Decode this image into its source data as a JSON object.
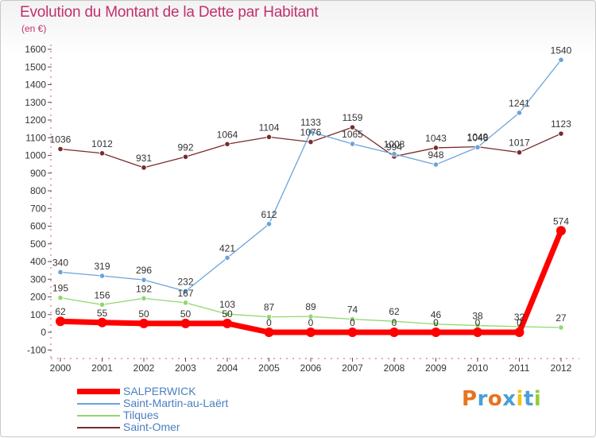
{
  "page": {
    "title": "Evolution du Montant de la Dette par Habitant",
    "subtitle": "(en €)"
  },
  "chart_data": {
    "type": "line",
    "title": "Evolution du Montant de la Dette par Habitant",
    "subtitle": "(en €)",
    "xlabel": "",
    "ylabel": "",
    "x": [
      "2000",
      "2001",
      "2002",
      "2003",
      "2004",
      "2005",
      "2006",
      "2007",
      "2008",
      "2009",
      "2010",
      "2011",
      "2012"
    ],
    "y_ticks": [
      -100,
      0,
      100,
      200,
      300,
      400,
      500,
      600,
      700,
      800,
      900,
      1000,
      1100,
      1200,
      1300,
      1400,
      1500,
      1600
    ],
    "ylim": [
      -100,
      1650
    ],
    "grid": false,
    "legend_position": "bottom-left",
    "series": [
      {
        "name": "SALPERWICK",
        "color": "#ff0000",
        "values": [
          62,
          55,
          50,
          50,
          50,
          0,
          0,
          0,
          0,
          0,
          0,
          0,
          574
        ],
        "labels": [
          "62",
          "55",
          "50",
          "50",
          "50",
          "0",
          "0",
          "0",
          "0",
          "0",
          "0",
          "0",
          "574"
        ]
      },
      {
        "name": "Saint-Martin-au-Laërt",
        "color": "#6aa3d9",
        "values": [
          340,
          319,
          296,
          232,
          421,
          612,
          1133,
          1065,
          1008,
          948,
          1046,
          1241,
          1540
        ],
        "labels": [
          "340",
          "319",
          "296",
          "232",
          "421",
          "612",
          "1133",
          "1065",
          "1008",
          "948",
          "1046",
          "1241",
          "1540"
        ]
      },
      {
        "name": "Tilques",
        "color": "#8fd870",
        "values": [
          195,
          156,
          192,
          167,
          103,
          87,
          89,
          74,
          62,
          46,
          38,
          32,
          27
        ],
        "labels": [
          "195",
          "156",
          "192",
          "167",
          "103",
          "87",
          "89",
          "74",
          "62",
          "46",
          "38",
          "32",
          "27"
        ]
      },
      {
        "name": "Saint-Omer",
        "color": "#7a2b2b",
        "values": [
          1036,
          1012,
          931,
          992,
          1064,
          1104,
          1076,
          1159,
          994,
          1043,
          1049,
          1017,
          1123
        ],
        "labels": [
          "1036",
          "1012",
          "931",
          "992",
          "1064",
          "1104",
          "1076",
          "1159",
          "994",
          "1043",
          "1049",
          "1017",
          "1123"
        ]
      }
    ]
  },
  "logo": {
    "text": "Proxiti",
    "letters": [
      {
        "ch": "P",
        "color": "#e8731f"
      },
      {
        "ch": "r",
        "color": "#4a9fd6"
      },
      {
        "ch": "o",
        "color": "#e8731f"
      },
      {
        "ch": "x",
        "color": "#4a9fd6"
      },
      {
        "ch": "i",
        "color": "#f2c318"
      },
      {
        "ch": "t",
        "color": "#4a9fd6"
      },
      {
        "ch": "i",
        "color": "#9cc93c"
      }
    ]
  }
}
